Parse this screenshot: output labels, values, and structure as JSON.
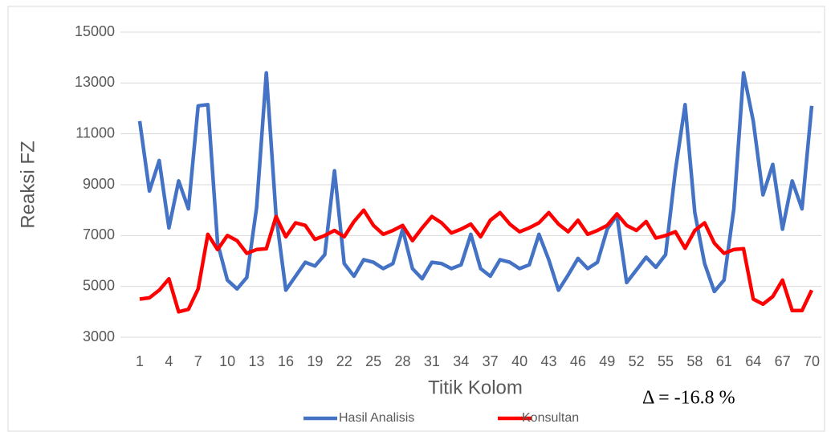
{
  "chart_data": {
    "type": "line",
    "y_label": "Reaksi FZ",
    "x_label": "Titik Kolom",
    "annotation": "Δ = -16.8 %",
    "categories": [
      1,
      null,
      null,
      4,
      null,
      null,
      7,
      null,
      null,
      10,
      null,
      null,
      13,
      null,
      null,
      16,
      null,
      null,
      19,
      null,
      null,
      22,
      null,
      null,
      25,
      null,
      null,
      28,
      null,
      null,
      31,
      null,
      null,
      34,
      null,
      null,
      37,
      null,
      null,
      40,
      null,
      null,
      43,
      null,
      null,
      46,
      null,
      null,
      49,
      null,
      null,
      52,
      null,
      null,
      55,
      null,
      null,
      58,
      null,
      null,
      61,
      null,
      null,
      64,
      null,
      null,
      67,
      null,
      null,
      70
    ],
    "series": [
      {
        "name": "Hasil Analisis",
        "color": "#4472c4",
        "values": [
          11500,
          8750,
          9950,
          7300,
          9150,
          8050,
          12100,
          12150,
          6700,
          5250,
          4900,
          5350,
          8100,
          13400,
          7800,
          4850,
          5400,
          5950,
          5800,
          6250,
          9550,
          5900,
          5400,
          6050,
          5950,
          5700,
          5900,
          7250,
          5700,
          5300,
          5950,
          5900,
          5700,
          5850,
          7050,
          5700,
          5400,
          6050,
          5950,
          5700,
          5850,
          7050,
          6050,
          4850,
          5450,
          6100,
          5700,
          5950,
          7250,
          7800,
          5150,
          5650,
          6150,
          5750,
          6250,
          9550,
          12150,
          7900,
          5900,
          4800,
          5250,
          8050,
          13400,
          11500,
          8600,
          9800,
          7250,
          9150,
          8050,
          12100
        ]
      },
      {
        "name": "Konsultan",
        "color": "#ff0000",
        "values": [
          4500,
          4550,
          4850,
          5300,
          4000,
          4100,
          4900,
          7050,
          6450,
          7000,
          6800,
          6300,
          6450,
          6480,
          7750,
          6950,
          7500,
          7400,
          6850,
          7000,
          7200,
          6950,
          7550,
          8000,
          7400,
          7050,
          7200,
          7400,
          6800,
          7300,
          7750,
          7500,
          7100,
          7250,
          7450,
          6950,
          7600,
          7900,
          7450,
          7150,
          7300,
          7500,
          7900,
          7450,
          7150,
          7600,
          7050,
          7200,
          7400,
          7850,
          7400,
          7200,
          7550,
          6900,
          7000,
          7150,
          6500,
          7200,
          7500,
          6700,
          6300,
          6450,
          6480,
          4500,
          4300,
          4600,
          5250,
          4050,
          4050,
          4850
        ]
      }
    ],
    "ylim": [
      3000,
      15000
    ],
    "yticks": [
      3000,
      5000,
      7000,
      9000,
      11000,
      13000,
      15000
    ],
    "grid": true,
    "legend": "bottom"
  }
}
